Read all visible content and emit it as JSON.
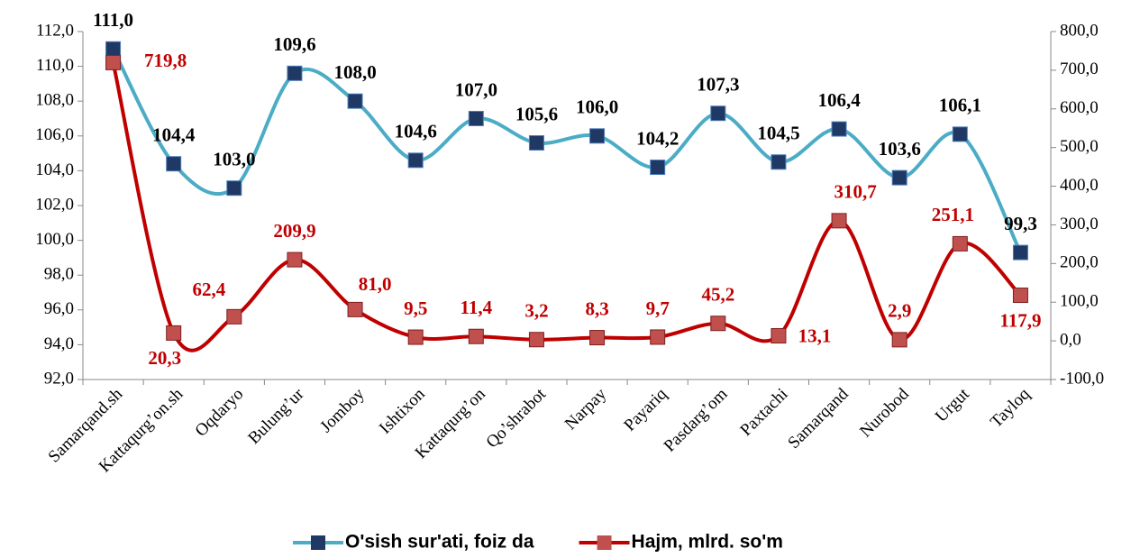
{
  "chart_data": {
    "type": "line",
    "categories": [
      "Samarqand.sh",
      "Kattaqurg’on.sh",
      "Oqdaryo",
      "Bulung’ur",
      "Jomboy",
      "Ishtixon",
      "Kattaqurg’on",
      "Qo’shrabot",
      "Narpay",
      "Payariq",
      "Pasdarg’om",
      "Paxtachi",
      "Samarqand",
      "Nurobod",
      "Urgut",
      "Tayloq"
    ],
    "series": [
      {
        "name": "O'sish sur'ati, foiz da",
        "color": "#4BACC6",
        "marker_color": "#1F3864",
        "label_color": "#000000",
        "axis": "y",
        "values": [
          111.0,
          104.4,
          103.0,
          109.6,
          108.0,
          104.6,
          107.0,
          105.6,
          106.0,
          104.2,
          107.3,
          104.5,
          106.4,
          103.6,
          106.1,
          99.3
        ],
        "value_labels": [
          "111,0",
          "104,4",
          "103,0",
          "109,6",
          "108,0",
          "104,6",
          "107,0",
          "105,6",
          "106,0",
          "104,2",
          "107,3",
          "104,5",
          "106,4",
          "103,6",
          "106,1",
          "99,3"
        ]
      },
      {
        "name": "Hajm, mlrd. so'm",
        "color": "#C00000",
        "marker_color": "#C0504D",
        "label_color": "#C00000",
        "axis": "y2",
        "values": [
          719.8,
          20.3,
          62.4,
          209.9,
          81.0,
          9.5,
          11.4,
          3.2,
          8.3,
          9.7,
          45.2,
          13.1,
          310.7,
          2.9,
          251.1,
          117.9
        ],
        "value_labels": [
          "719,8",
          "20,3",
          "62,4",
          "209,9",
          "81,0",
          "9,5",
          "11,4",
          "3,2",
          "8,3",
          "9,7",
          "45,2",
          "13,1",
          "310,7",
          "2,9",
          "251,1",
          "117,9"
        ]
      }
    ],
    "ylim": [
      92,
      112
    ],
    "yticks": [
      {
        "value": 92,
        "label": "92,0"
      },
      {
        "value": 94,
        "label": "94,0"
      },
      {
        "value": 96,
        "label": "96,0"
      },
      {
        "value": 98,
        "label": "98,0"
      },
      {
        "value": 100,
        "label": "100,0"
      },
      {
        "value": 102,
        "label": "102,0"
      },
      {
        "value": 104,
        "label": "104,0"
      },
      {
        "value": 106,
        "label": "106,0"
      },
      {
        "value": 108,
        "label": "108,0"
      },
      {
        "value": 110,
        "label": "110,0"
      },
      {
        "value": 112,
        "label": "112,0"
      }
    ],
    "y2lim": [
      -100,
      800
    ],
    "y2ticks": [
      {
        "value": -100,
        "label": "-100,0"
      },
      {
        "value": 0,
        "label": "0,0"
      },
      {
        "value": 100,
        "label": "100,0"
      },
      {
        "value": 200,
        "label": "200,0"
      },
      {
        "value": 300,
        "label": "300,0"
      },
      {
        "value": 400,
        "label": "400,0"
      },
      {
        "value": 500,
        "label": "500,0"
      },
      {
        "value": 600,
        "label": "600,0"
      },
      {
        "value": 700,
        "label": "700,0"
      },
      {
        "value": 800,
        "label": "800,0"
      }
    ],
    "legend": "bottom"
  }
}
